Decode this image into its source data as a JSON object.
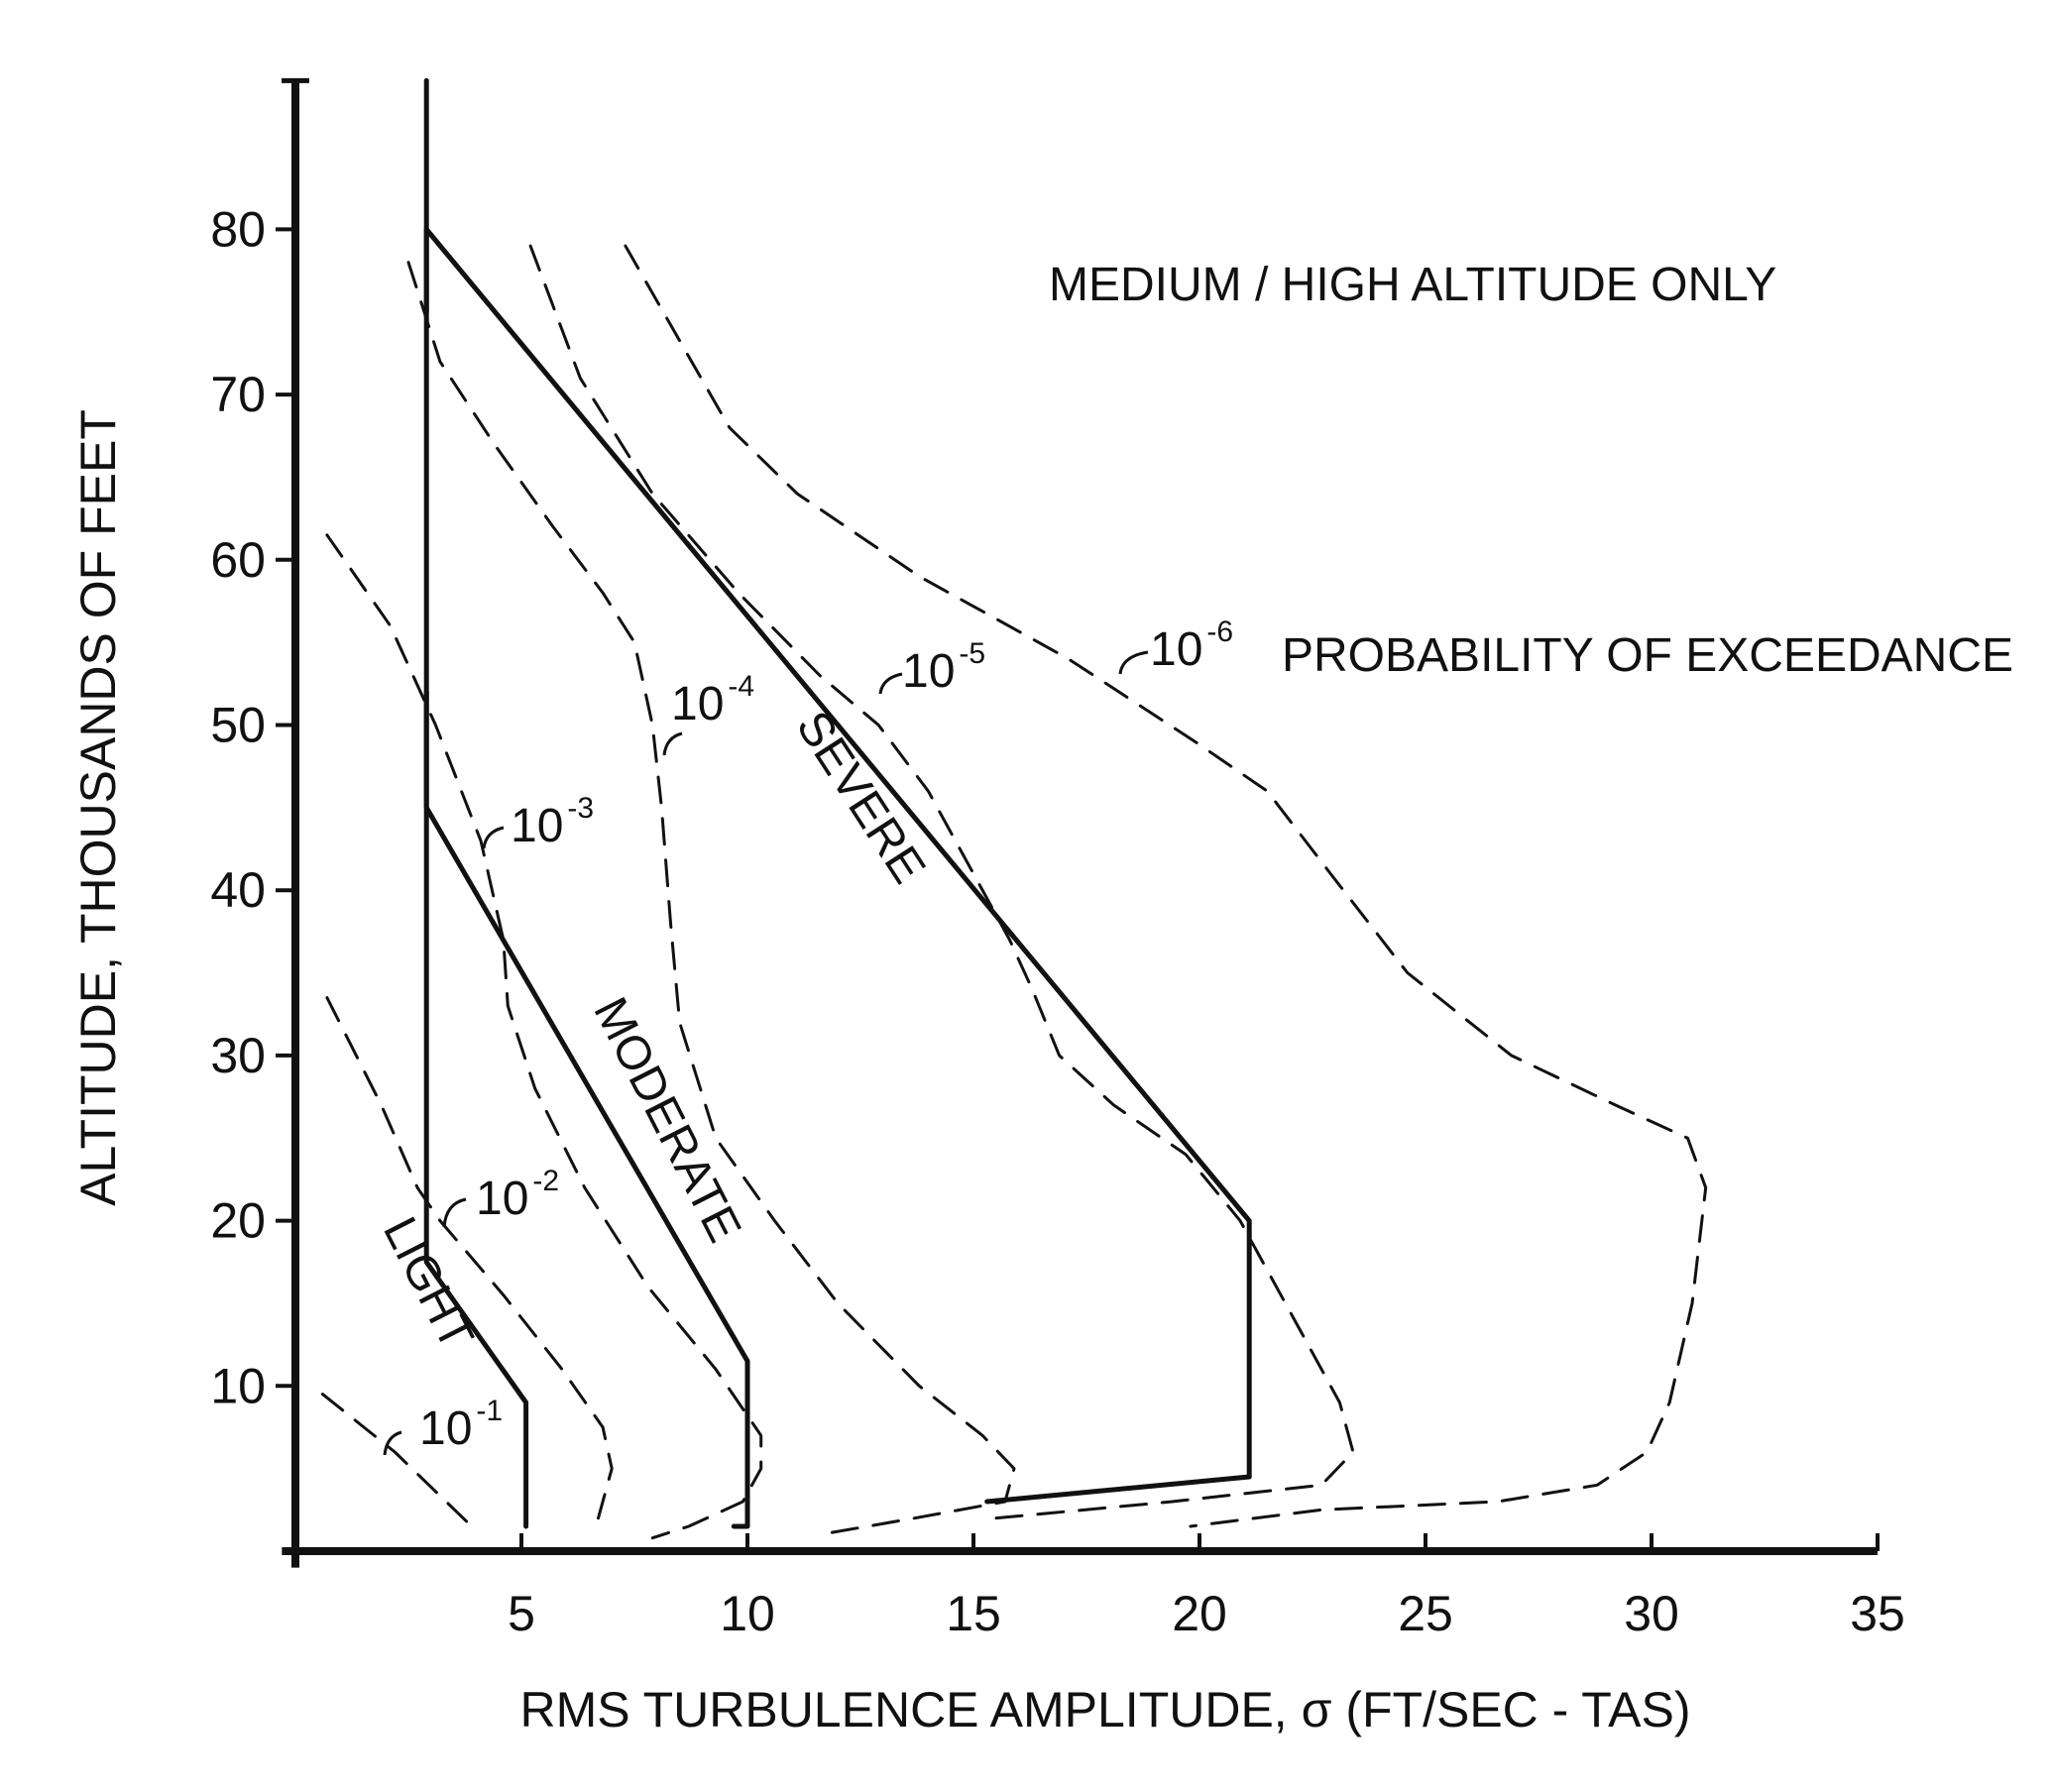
{
  "chart_data": {
    "type": "line",
    "title": "",
    "xlabel": "RMS TURBULENCE AMPLITUDE, σ (FT/SEC - TAS)",
    "ylabel": "ALTITUDE, THOUSANDS OF FEET",
    "xlim": [
      -0.3,
      35
    ],
    "ylim": [
      -1,
      89
    ],
    "x_ticks": [
      5,
      10,
      15,
      20,
      25,
      30,
      35
    ],
    "y_ticks": [
      10,
      20,
      30,
      40,
      50,
      60,
      70,
      80
    ],
    "grid": false,
    "legend": "none",
    "annotations": [
      {
        "text": "MEDIUM / HIGH ALTITUDE ONLY"
      },
      {
        "text": "PROBABILITY OF EXCEEDANCE"
      }
    ],
    "series": [
      {
        "name": "LIGHT",
        "style": "solid",
        "x": [
          5.1,
          5.1,
          2.9,
          2.9
        ],
        "y": [
          1.5,
          9,
          17.5,
          89
        ]
      },
      {
        "name": "MODERATE",
        "style": "solid",
        "x": [
          9.7,
          10,
          10,
          2.9,
          2.9
        ],
        "y": [
          1.5,
          1.5,
          11.5,
          45,
          52
        ]
      },
      {
        "name": "SEVERE",
        "style": "solid",
        "x": [
          15.3,
          21.1,
          21.1,
          2.9,
          2.9
        ],
        "y": [
          3,
          4.5,
          20,
          80,
          75
        ]
      },
      {
        "name": "10",
        "exponent": "-1",
        "style": "dashed",
        "x": [
          0.6,
          2.2,
          3.9
        ],
        "y": [
          9.5,
          6,
          1.5
        ]
      },
      {
        "name": "10",
        "exponent": "-2",
        "style": "dashed",
        "x": [
          0.7,
          1.9,
          2.7,
          3.2,
          4.6,
          5.9,
          6.8,
          7,
          6.7
        ],
        "y": [
          33.5,
          27,
          22,
          20,
          15.5,
          11,
          7.5,
          5,
          2
        ]
      },
      {
        "name": "10",
        "exponent": "-3",
        "style": "dashed",
        "x": [
          0.7,
          2.1,
          3.1,
          4.1,
          4.6,
          4.7,
          5.3,
          6.4,
          7.8,
          9.3,
          10.3,
          10.3,
          9.9,
          8.7,
          7.9
        ],
        "y": [
          61.5,
          56,
          50,
          43,
          37,
          33,
          28,
          22,
          16,
          11,
          7,
          5,
          3,
          1.5,
          0.8
        ]
      },
      {
        "name": "10",
        "exponent": "-4",
        "style": "dashed",
        "x": [
          2.5,
          3.2,
          4.4,
          5.7,
          6.8,
          7.5,
          7.9,
          8.1,
          8.3,
          8.5,
          9.3,
          10.6,
          12,
          13.8,
          15.2,
          15.9,
          15.7,
          13.7,
          11.6
        ],
        "y": [
          78,
          72,
          67,
          62,
          58,
          55,
          50,
          45,
          38,
          32,
          25,
          20,
          15,
          10,
          7,
          5,
          3,
          2,
          1
        ]
      },
      {
        "name": "10",
        "exponent": "-5",
        "style": "dashed",
        "x": [
          5.2,
          6.3,
          7.9,
          9.8,
          11.6,
          12.9,
          14,
          15,
          15.8,
          16.3,
          16.9,
          18.1,
          19.7,
          20.9,
          22.1,
          23.1,
          23.4,
          22.7,
          19.4,
          15.5
        ],
        "y": [
          79,
          71,
          64,
          58,
          53,
          50,
          46,
          41,
          37,
          34,
          30,
          27,
          24,
          20,
          14,
          9,
          6,
          4,
          3,
          2
        ]
      },
      {
        "name": "10",
        "exponent": "-6",
        "style": "dashed",
        "x": [
          7.3,
          9.6,
          11.1,
          13.8,
          17.1,
          19.9,
          21.5,
          22.9,
          24.6,
          26.9,
          29.2,
          30.8,
          31.2,
          30.9,
          30.4,
          29.9,
          28.8,
          26.6,
          22.7,
          19.8
        ],
        "y": [
          79,
          68,
          64,
          59,
          54,
          49,
          46,
          41,
          35,
          30,
          27,
          25,
          22,
          15,
          9,
          6,
          4,
          3,
          2.5,
          1.5
        ]
      }
    ],
    "curve_labels": [
      {
        "text": "LIGHT",
        "series": "LIGHT"
      },
      {
        "text": "MODERATE",
        "series": "MODERATE"
      },
      {
        "text": "SEVERE",
        "series": "SEVERE"
      }
    ]
  }
}
